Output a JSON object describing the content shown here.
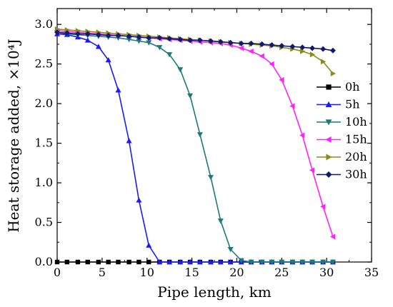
{
  "chart_data": {
    "type": "line",
    "xlabel": "Pipe length, km",
    "ylabel": "Heat storage added, ×10⁴J",
    "xlim": [
      0,
      35
    ],
    "ylim": [
      0,
      3.2
    ],
    "x_ticks": [
      "0",
      "5",
      "10",
      "15",
      "20",
      "25",
      "30",
      "35"
    ],
    "y_ticks": [
      "0.0",
      "0.5",
      "1.0",
      "1.5",
      "2.0",
      "2.5",
      "3.0"
    ],
    "legend_position": "right",
    "series": [
      {
        "name": "0h",
        "color": "#000000",
        "marker": "square",
        "x": [
          0,
          1.1,
          2.3,
          3.4,
          4.6,
          5.7,
          6.8,
          8,
          9.1,
          10.2,
          11.4,
          12.5,
          13.7,
          14.8,
          15.9,
          17.1,
          18.2,
          19.3,
          20.5,
          21.6,
          22.8,
          23.9,
          25,
          26.2,
          27.3,
          28.4,
          29.6,
          30.7
        ],
        "y": [
          0,
          0,
          0,
          0,
          0,
          0,
          0,
          0,
          0,
          0,
          0,
          0,
          0,
          0,
          0,
          0,
          0,
          0,
          0,
          0,
          0,
          0,
          0,
          0,
          0,
          0,
          0,
          0
        ]
      },
      {
        "name": "5h",
        "color": "#1a1aff",
        "marker": "triangle-up",
        "x": [
          0,
          1.1,
          2.3,
          3.4,
          4.6,
          5.7,
          6.8,
          8,
          9.1,
          10.2,
          11.4,
          12.5,
          13.7,
          14.8,
          15.9,
          17.1,
          18.2,
          19.3,
          20.5,
          21.6,
          22.8,
          23.9,
          25,
          26.2,
          27.3,
          28.4,
          29.6,
          30.7
        ],
        "y": [
          2.88,
          2.87,
          2.84,
          2.8,
          2.72,
          2.55,
          2.17,
          1.53,
          0.78,
          0.21,
          0,
          0,
          0,
          0,
          0,
          0,
          0,
          0,
          0,
          0,
          0,
          0,
          0,
          0,
          0,
          0,
          0,
          0
        ]
      },
      {
        "name": "10h",
        "color": "#1a7a7a",
        "marker": "triangle-down",
        "x": [
          0,
          1.1,
          2.3,
          3.4,
          4.6,
          5.7,
          6.8,
          8,
          9.1,
          10.2,
          11.4,
          12.5,
          13.7,
          14.8,
          15.9,
          17.1,
          18.2,
          19.3,
          20.5,
          21.6,
          22.8,
          23.9,
          25,
          26.2,
          27.3,
          28.4,
          29.6,
          30.7
        ],
        "y": [
          2.9,
          2.88,
          2.87,
          2.86,
          2.85,
          2.84,
          2.83,
          2.81,
          2.79,
          2.77,
          2.71,
          2.62,
          2.43,
          2.1,
          1.61,
          1.07,
          0.52,
          0.16,
          0.02,
          0,
          0,
          0,
          0,
          0,
          0,
          0,
          0,
          0
        ]
      },
      {
        "name": "15h",
        "color": "#ff22ff",
        "marker": "triangle-left",
        "x": [
          0,
          1.1,
          2.3,
          3.4,
          4.6,
          5.7,
          6.8,
          8,
          9.1,
          10.2,
          11.4,
          12.5,
          13.7,
          14.8,
          15.9,
          17.1,
          18.2,
          19.3,
          20.5,
          21.6,
          22.8,
          23.9,
          25,
          26.2,
          27.3,
          28.4,
          29.6,
          30.7
        ],
        "y": [
          2.92,
          2.91,
          2.9,
          2.89,
          2.88,
          2.87,
          2.86,
          2.85,
          2.84,
          2.83,
          2.82,
          2.81,
          2.8,
          2.79,
          2.78,
          2.77,
          2.76,
          2.74,
          2.7,
          2.66,
          2.6,
          2.5,
          2.3,
          1.97,
          1.6,
          1.16,
          0.7,
          0.32
        ]
      },
      {
        "name": "20h",
        "color": "#8b8b1a",
        "marker": "triangle-right",
        "x": [
          0,
          1.1,
          2.3,
          3.4,
          4.6,
          5.7,
          6.8,
          8,
          9.1,
          10.2,
          11.4,
          12.5,
          13.7,
          14.8,
          15.9,
          17.1,
          18.2,
          19.3,
          20.5,
          21.6,
          22.8,
          23.9,
          25,
          26.2,
          27.3,
          28.4,
          29.6,
          30.7
        ],
        "y": [
          2.94,
          2.93,
          2.92,
          2.91,
          2.9,
          2.89,
          2.88,
          2.87,
          2.86,
          2.85,
          2.84,
          2.83,
          2.82,
          2.81,
          2.8,
          2.79,
          2.78,
          2.77,
          2.76,
          2.75,
          2.74,
          2.73,
          2.71,
          2.69,
          2.66,
          2.62,
          2.53,
          2.38
        ]
      },
      {
        "name": "30h",
        "color": "#0f1a6e",
        "marker": "diamond",
        "x": [
          0,
          1.1,
          2.3,
          3.4,
          4.6,
          5.7,
          6.8,
          8,
          9.1,
          10.2,
          11.4,
          12.5,
          13.7,
          14.8,
          15.9,
          17.1,
          18.2,
          19.3,
          20.5,
          21.6,
          22.8,
          23.9,
          25,
          26.2,
          27.3,
          28.4,
          29.6,
          30.7
        ],
        "y": [
          2.9,
          2.89,
          2.88,
          2.88,
          2.87,
          2.86,
          2.86,
          2.85,
          2.84,
          2.83,
          2.83,
          2.82,
          2.81,
          2.8,
          2.8,
          2.79,
          2.78,
          2.77,
          2.76,
          2.76,
          2.75,
          2.74,
          2.73,
          2.72,
          2.71,
          2.7,
          2.69,
          2.67
        ]
      }
    ]
  }
}
